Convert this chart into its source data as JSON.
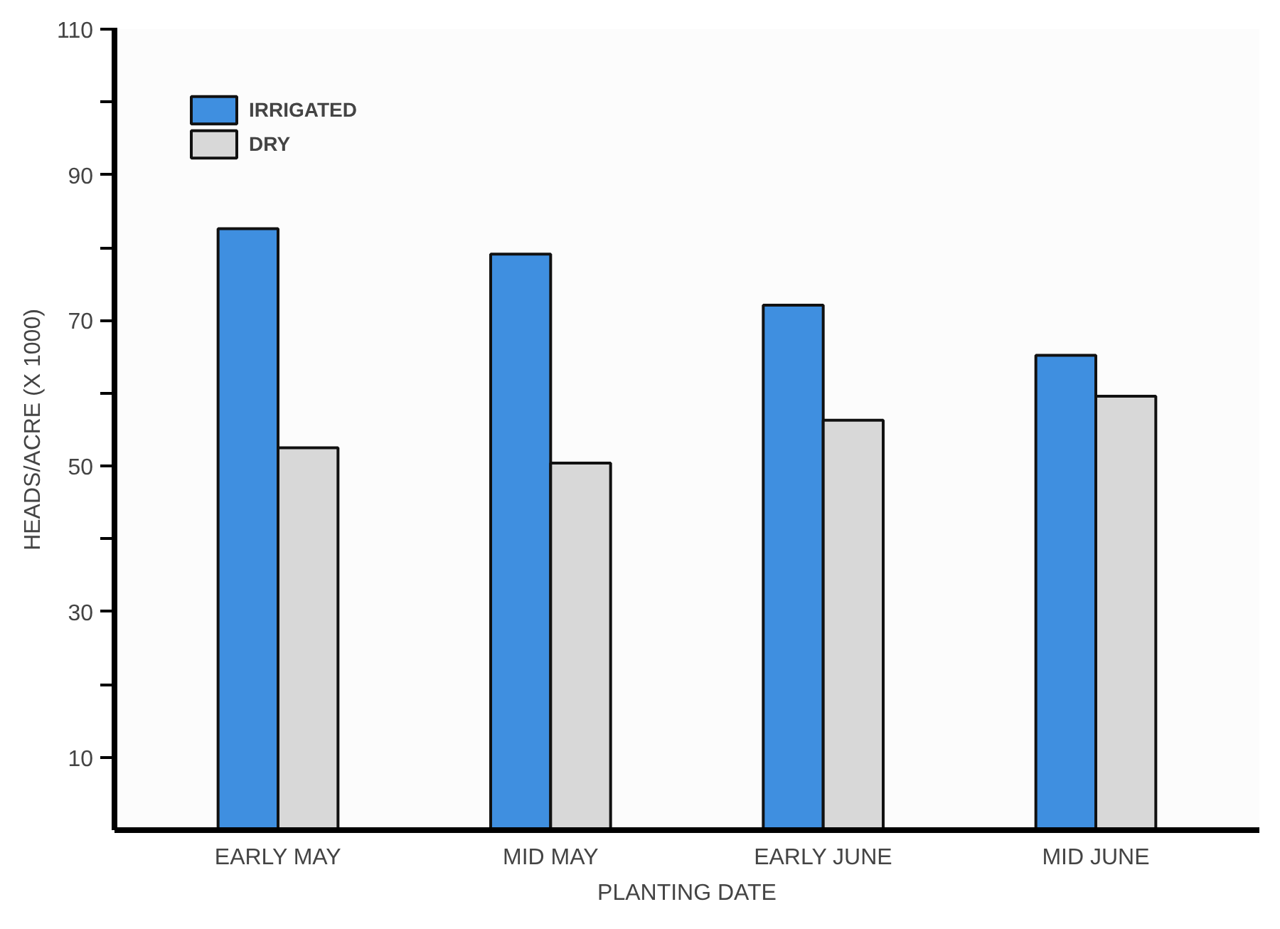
{
  "chart_data": {
    "type": "bar",
    "xlabel": "PLANTING DATE",
    "ylabel": "HEADS/ACRE (X 1000)",
    "categories": [
      "EARLY MAY",
      "MID MAY",
      "EARLY JUNE",
      "MID JUNE"
    ],
    "series": [
      {
        "name": "IRRIGATED",
        "color": "#3f8fe0",
        "values": [
          82.6,
          79.1,
          72.1,
          65.2
        ]
      },
      {
        "name": "DRY",
        "color": "#d8d8d8",
        "values": [
          52.5,
          50.4,
          56.3,
          59.6
        ]
      }
    ],
    "ylim": [
      0,
      110
    ],
    "yticks": [
      10,
      {
        "value": 20,
        "label": null
      },
      30,
      {
        "value": 40,
        "label": null
      },
      50,
      {
        "value": 60,
        "label": null
      },
      70,
      {
        "value": 80,
        "label": null
      },
      90,
      {
        "value": 100,
        "label": null
      },
      110
    ],
    "grid": false,
    "legend": "top left"
  }
}
